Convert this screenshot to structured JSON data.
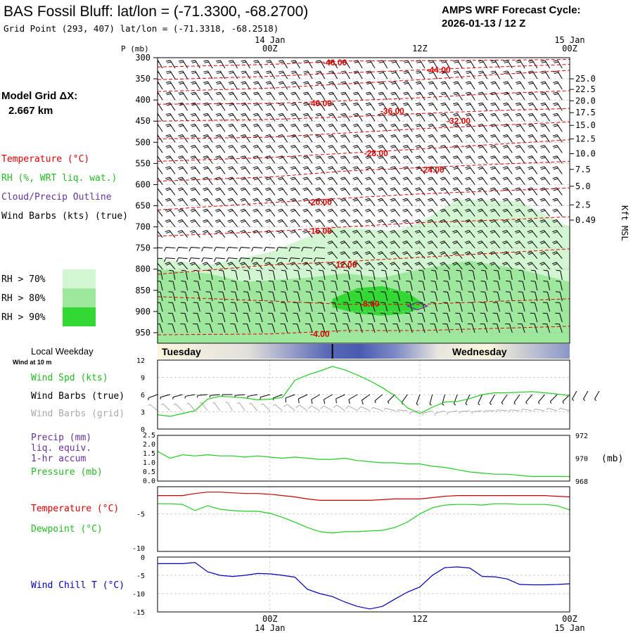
{
  "header": {
    "station_title": "BAS Fossil Bluff:  lat/lon = (-71.3300, -68.2700)",
    "grid_point": "Grid Point (293, 407) lat/lon = (-71.3318, -68.2518)",
    "forecast_label": "AMPS WRF Forecast Cycle:",
    "forecast_cycle": "2026-01-13 / 12  Z"
  },
  "legend": {
    "model_grid_label": "Model Grid ΔX:",
    "model_grid_value": "2.667 km",
    "temperature": "Temperature (°C)",
    "rh": "RH (%, WRT liq. wat.)",
    "cloud": "Cloud/Precip Outline",
    "wind": "Wind Barbs (kts) (true)",
    "rh_levels": [
      {
        "label": "RH > 70%",
        "color": "#d2f5d2"
      },
      {
        "label": "RH > 80%",
        "color": "#9ee89e"
      },
      {
        "label": "RH > 90%",
        "color": "#34d834"
      }
    ]
  },
  "time_axis": {
    "hours": [
      0,
      12,
      24
    ],
    "top_labels": [
      "00Z",
      "12Z",
      "00Z"
    ],
    "date_labels": [
      "14 Jan",
      "15 Jan"
    ],
    "forecast_hours": [
      0,
      36
    ],
    "day_bar": {
      "local_weekday_label": "Local Weekday",
      "days": [
        "Tuesday",
        "Wednesday"
      ],
      "midnight_hour": 5.0
    }
  },
  "colors": {
    "temperature": "#dd0000",
    "rh_label": "#22bb22",
    "cloud": "#663399",
    "dewpoint": "#22cc22",
    "wind_chill": "#0000bb",
    "grid_barb": "#aaaaaa",
    "day_blue": "#5a6ab8",
    "day_cream": "#fbf6dc"
  },
  "chart_data": [
    {
      "type": "contour",
      "name": "cross-section",
      "y_axis_label": "P (mb)",
      "y_ticks": [
        300,
        350,
        400,
        450,
        500,
        550,
        600,
        650,
        700,
        750,
        800,
        850,
        900,
        950
      ],
      "ylim": [
        300,
        975
      ],
      "right_axis_label": "Kft MSL",
      "right_ticks": [
        {
          "label": "25.0",
          "p": 350
        },
        {
          "label": "22.5",
          "p": 375
        },
        {
          "label": "20.0",
          "p": 402
        },
        {
          "label": "17.5",
          "p": 430
        },
        {
          "label": "15.0",
          "p": 460
        },
        {
          "label": "12.5",
          "p": 492
        },
        {
          "label": "10.0",
          "p": 527
        },
        {
          "label": "7.5",
          "p": 564
        },
        {
          "label": "5.0",
          "p": 604
        },
        {
          "label": "2.5",
          "p": 648
        },
        {
          "label": "0.49",
          "p": 684
        }
      ],
      "isotherm_labels": [
        {
          "text": "-46.00",
          "t": 5.2,
          "p": 312
        },
        {
          "text": "-44.00",
          "t": 13.5,
          "p": 329
        },
        {
          "text": "-40.00",
          "t": 4.0,
          "p": 408
        },
        {
          "text": "-36.00",
          "t": 9.8,
          "p": 426
        },
        {
          "text": "-32.00",
          "t": 15.1,
          "p": 450
        },
        {
          "text": "-28.00",
          "t": 8.5,
          "p": 526
        },
        {
          "text": "-24.00",
          "t": 13.0,
          "p": 565
        },
        {
          "text": "-20.00",
          "t": 4.0,
          "p": 642
        },
        {
          "text": "-16.00",
          "t": 4.0,
          "p": 710
        },
        {
          "text": "-12.00",
          "t": 6.0,
          "p": 790
        },
        {
          "text": "-8.00",
          "t": 8.0,
          "p": 882
        },
        {
          "text": "-4.00",
          "t": 4.0,
          "p": 953
        }
      ],
      "isotherms": [
        {
          "t": [
            -9,
            0,
            6,
            12,
            18,
            24
          ],
          "p": [
            322,
            316,
            308,
            307,
            306,
            304
          ]
        },
        {
          "t": [
            -9,
            0,
            6,
            12,
            18,
            24
          ],
          "p": [
            352,
            344,
            336,
            329,
            322,
            316
          ]
        },
        {
          "t": [
            -9,
            0,
            6,
            12,
            18,
            24
          ],
          "p": [
            380,
            372,
            362,
            352,
            340,
            330
          ]
        },
        {
          "t": [
            -9,
            0,
            6,
            12,
            18,
            24
          ],
          "p": [
            410,
            408,
            402,
            395,
            385,
            378
          ]
        },
        {
          "t": [
            -9,
            0,
            6,
            12,
            18,
            24
          ],
          "p": [
            450,
            446,
            440,
            432,
            425,
            420
          ]
        },
        {
          "t": [
            -9,
            0,
            6,
            12,
            18,
            24
          ],
          "p": [
            492,
            488,
            478,
            468,
            460,
            452
          ]
        },
        {
          "t": [
            -9,
            0,
            6,
            12,
            18,
            24
          ],
          "p": [
            545,
            536,
            526,
            516,
            505,
            494
          ]
        },
        {
          "t": [
            -9,
            0,
            6,
            12,
            18,
            24
          ],
          "p": [
            592,
            582,
            568,
            560,
            552,
            545
          ]
        },
        {
          "t": [
            -9,
            0,
            6,
            12,
            18,
            24
          ],
          "p": [
            660,
            643,
            632,
            622,
            615,
            608
          ]
        },
        {
          "t": [
            -9,
            0,
            6,
            12,
            18,
            24
          ],
          "p": [
            722,
            711,
            700,
            690,
            684,
            676
          ]
        },
        {
          "t": [
            -9,
            0,
            6,
            12,
            18,
            24
          ],
          "p": [
            812,
            790,
            782,
            772,
            762,
            752
          ]
        },
        {
          "t": [
            -9,
            0,
            6,
            12,
            18,
            24
          ],
          "p": [
            865,
            875,
            883,
            883,
            876,
            870
          ]
        },
        {
          "t": [
            -9,
            0,
            6,
            12,
            18,
            24
          ],
          "p": [
            955,
            953,
            945,
            945,
            940,
            935
          ]
        }
      ],
      "rh_regions": [
        {
          "level": 70,
          "t": [
            -9,
            -5,
            0,
            5,
            10,
            12,
            15,
            20,
            24,
            24,
            20,
            15,
            12,
            10,
            5,
            0,
            -5,
            -9
          ],
          "p": [
            775,
            790,
            760,
            700,
            710,
            690,
            635,
            640,
            700,
            975,
            975,
            975,
            975,
            975,
            975,
            975,
            975,
            975
          ]
        },
        {
          "level": 80,
          "t": [
            -9,
            -5,
            -2,
            3,
            6,
            9,
            12,
            16,
            20,
            24,
            24,
            20,
            16,
            12,
            9,
            6,
            3,
            -2,
            -5,
            -9
          ],
          "p": [
            800,
            810,
            830,
            820,
            810,
            820,
            800,
            780,
            800,
            830,
            975,
            975,
            975,
            975,
            975,
            975,
            975,
            975,
            975,
            975
          ]
        },
        {
          "level": 90,
          "t": [
            5,
            7,
            9,
            11,
            12.5,
            11,
            9,
            7,
            5
          ],
          "p": [
            870,
            845,
            840,
            855,
            885,
            905,
            910,
            905,
            890
          ]
        }
      ],
      "cloud_outline": {
        "t": [
          11.0,
          11.8,
          12.6,
          11.8,
          11.0
        ],
        "p": [
          887,
          878,
          887,
          896,
          887
        ]
      }
    },
    {
      "type": "line",
      "name": "surface-wind",
      "title": "Local Weekday",
      "subtitle": "Wind at 10 m",
      "series_labels": [
        "Wind Spd (kts)",
        "Wind Barbs (true)",
        "Wind Barbs (grid)"
      ],
      "ylim": [
        0,
        12
      ],
      "y_ticks": [
        0,
        3,
        6,
        9,
        12
      ],
      "x": [
        -9,
        -8,
        -7,
        -6,
        -5,
        -4,
        -3,
        -2,
        -1,
        0,
        1,
        2,
        3,
        4,
        5,
        6,
        7,
        8,
        9,
        10,
        11,
        12,
        13,
        14,
        15,
        16,
        17,
        18,
        19,
        20,
        21,
        22,
        23,
        24
      ],
      "wind_speed": [
        2.5,
        2.2,
        2.7,
        3.2,
        5.2,
        5.7,
        5.6,
        5.4,
        5.1,
        5.2,
        5.5,
        8.5,
        9.4,
        10.1,
        10.9,
        10.3,
        9.4,
        8.4,
        7.2,
        5.8,
        3.7,
        2.7,
        3.8,
        4.7,
        4.8,
        5.3,
        6.0,
        6.3,
        6.3,
        6.4,
        6.5,
        6.3,
        6.1,
        5.8
      ],
      "barb_dir_true": [
        250,
        255,
        255,
        260,
        265,
        265,
        270,
        265,
        260,
        255,
        250,
        250,
        245,
        240,
        240,
        245,
        240,
        235,
        230,
        225,
        215,
        200,
        195,
        195,
        200,
        205,
        205,
        210,
        215,
        215,
        220,
        220,
        225,
        225
      ]
    },
    {
      "type": "line",
      "name": "precip-pressure",
      "series_labels": [
        "Precip (mm)",
        "liq. equiv.",
        "1-hr accum",
        "Pressure (mb)"
      ],
      "precip_ticks": [
        0.0,
        0.5,
        1.0,
        1.5,
        2.0,
        2.5
      ],
      "pressure_ticks": [
        968,
        970,
        972
      ],
      "pressure_unit": "(mb)",
      "x": [
        -9,
        -8,
        -7,
        -6,
        -5,
        -4,
        -3,
        -2,
        -1,
        0,
        1,
        2,
        3,
        4,
        5,
        6,
        7,
        8,
        9,
        10,
        11,
        12,
        13,
        14,
        15,
        16,
        17,
        18,
        19,
        20,
        21,
        22,
        23,
        24
      ],
      "pressure": [
        970.6,
        970.0,
        970.3,
        970.2,
        970.3,
        970.2,
        970.2,
        970.1,
        970.2,
        970.1,
        970.0,
        970.1,
        970.0,
        969.9,
        969.9,
        970.0,
        969.8,
        969.7,
        969.6,
        969.6,
        969.5,
        969.5,
        969.3,
        969.2,
        969.0,
        968.8,
        968.7,
        968.6,
        968.6,
        968.5,
        968.4,
        968.4,
        968.4,
        968.4
      ],
      "precip": [
        0,
        0,
        0,
        0,
        0,
        0,
        0,
        0,
        0,
        0,
        0,
        0,
        0,
        0,
        0,
        0,
        0,
        0,
        0,
        0,
        0,
        0,
        0,
        0,
        0,
        0,
        0,
        0,
        0,
        0,
        0,
        0,
        0,
        0
      ]
    },
    {
      "type": "line",
      "name": "temperature-dewpoint",
      "series_labels": [
        "Temperature (°C)",
        "Dewpoint (°C)"
      ],
      "y_ticks": [
        -5,
        -10
      ],
      "ylim": [
        -10.5,
        -1
      ],
      "x": [
        -9,
        -8,
        -7,
        -6,
        -5,
        -4,
        -3,
        -2,
        -1,
        0,
        1,
        2,
        3,
        4,
        5,
        6,
        7,
        8,
        9,
        10,
        11,
        12,
        13,
        14,
        15,
        16,
        17,
        18,
        19,
        20,
        21,
        22,
        23,
        24
      ],
      "temperature": [
        -2.3,
        -2.3,
        -2.3,
        -2.0,
        -1.8,
        -1.8,
        -1.9,
        -2.0,
        -2.0,
        -2.1,
        -2.3,
        -2.5,
        -2.8,
        -3.0,
        -3.0,
        -3.0,
        -3.0,
        -3.0,
        -2.9,
        -2.8,
        -2.8,
        -2.8,
        -2.6,
        -2.4,
        -2.3,
        -2.3,
        -2.3,
        -2.3,
        -2.3,
        -2.3,
        -2.3,
        -2.3,
        -2.4,
        -2.5
      ],
      "dewpoint": [
        -3.5,
        -3.5,
        -3.6,
        -4.5,
        -3.8,
        -4.3,
        -4.5,
        -4.6,
        -4.6,
        -4.9,
        -5.5,
        -6.2,
        -7.0,
        -7.6,
        -7.8,
        -7.6,
        -7.6,
        -7.5,
        -7.4,
        -7.0,
        -6.2,
        -5.0,
        -4.1,
        -3.7,
        -3.6,
        -3.6,
        -3.7,
        -3.5,
        -3.5,
        -3.6,
        -3.6,
        -3.6,
        -3.8,
        -4.4
      ]
    },
    {
      "type": "line",
      "name": "wind-chill",
      "series_labels": [
        "Wind Chill T (°C)"
      ],
      "y_ticks": [
        0,
        -5,
        -10,
        -15
      ],
      "ylim": [
        -15,
        0
      ],
      "x": [
        -9,
        -8,
        -7,
        -6,
        -5,
        -4,
        -3,
        -2,
        -1,
        0,
        1,
        2,
        3,
        4,
        5,
        6,
        7,
        8,
        9,
        10,
        11,
        12,
        13,
        14,
        15,
        16,
        17,
        18,
        19,
        20,
        21,
        22,
        23,
        24
      ],
      "wind_chill": [
        -1.8,
        -1.8,
        -1.8,
        -1.5,
        -4.0,
        -5.0,
        -5.3,
        -5.0,
        -4.5,
        -4.6,
        -5.0,
        -5.5,
        -8.8,
        -10.0,
        -10.8,
        -12.3,
        -13.5,
        -14.2,
        -13.5,
        -11.5,
        -9.6,
        -8.2,
        -5.0,
        -2.9,
        -2.7,
        -3.0,
        -5.3,
        -5.4,
        -6.0,
        -7.5,
        -7.6,
        -7.6,
        -7.5,
        -7.3
      ]
    }
  ]
}
